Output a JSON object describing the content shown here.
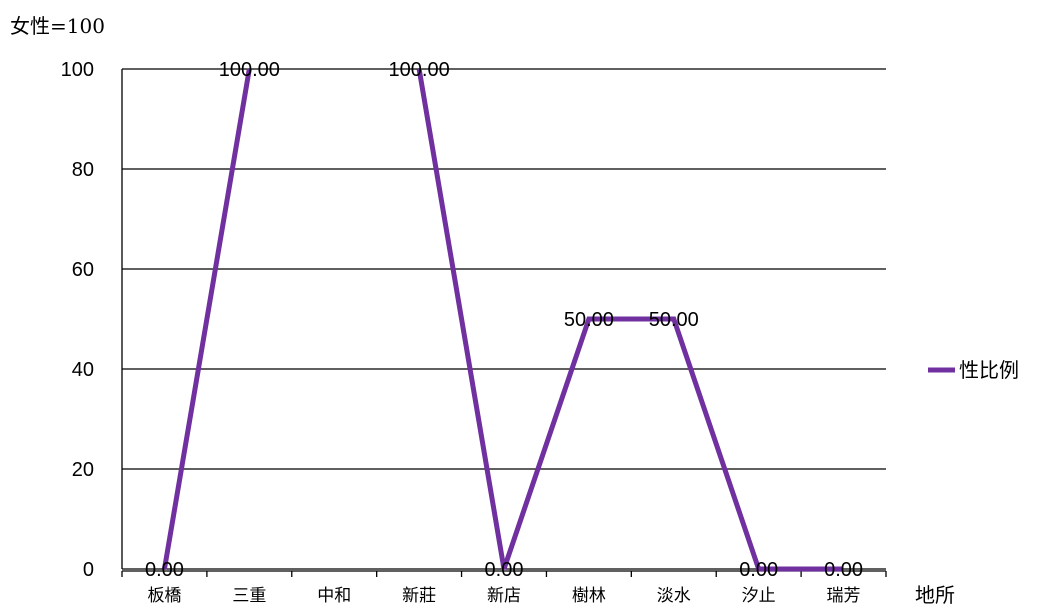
{
  "chart_data": {
    "type": "line",
    "ylabel": "女性=100",
    "xlabel": "地所",
    "categories": [
      "板橋",
      "三重",
      "中和",
      "新莊",
      "新店",
      "樹林",
      "淡水",
      "汐止",
      "瑞芳"
    ],
    "series": [
      {
        "name": "性比例",
        "values": [
          0,
          100,
          null,
          100,
          0,
          50,
          50,
          0,
          0
        ],
        "labels": [
          "0.00",
          "100.00",
          "",
          "100.00",
          "0.00",
          "50.00",
          "50.00",
          "0.00",
          "0.00"
        ]
      }
    ],
    "ylim": [
      0,
      100
    ],
    "yticks": [
      0,
      20,
      40,
      60,
      80,
      100
    ],
    "grid": true,
    "legend": "right",
    "colors": {
      "series": "#7030A0",
      "axis": "#000000"
    }
  }
}
